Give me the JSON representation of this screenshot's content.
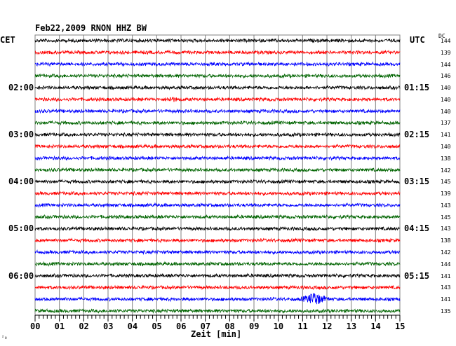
{
  "header": {
    "title": "Feb22,2009   RNON HHZ BW",
    "left_zone": "CET",
    "right_zone": "UTC",
    "dc_label": "DC"
  },
  "footer": {
    "xlabel": "Zeit [min]",
    "mark": "²₀"
  },
  "colors": {
    "trace_cycle": [
      "#000000",
      "#ff0000",
      "#0000ff",
      "#006400"
    ],
    "grid": "#808080"
  },
  "chart_data": {
    "type": "line",
    "title": "Feb22,2009   RNON HHZ BW",
    "xlabel": "Zeit [min]",
    "xlim": [
      0,
      15
    ],
    "x_ticks": [
      "00",
      "01",
      "02",
      "03",
      "04",
      "05",
      "06",
      "07",
      "08",
      "09",
      "10",
      "11",
      "12",
      "13",
      "14",
      "15"
    ],
    "trace_count": 24,
    "left_time_labels": [
      {
        "trace": 4,
        "text": "02:00"
      },
      {
        "trace": 8,
        "text": "03:00"
      },
      {
        "trace": 12,
        "text": "04:00"
      },
      {
        "trace": 16,
        "text": "05:00"
      },
      {
        "trace": 20,
        "text": "06:00"
      }
    ],
    "right_time_labels": [
      {
        "trace": 4,
        "text": "01:15"
      },
      {
        "trace": 8,
        "text": "02:15"
      },
      {
        "trace": 12,
        "text": "03:15"
      },
      {
        "trace": 16,
        "text": "04:15"
      },
      {
        "trace": 20,
        "text": "05:15"
      }
    ],
    "dc_values": [
      "144",
      "139",
      "144",
      "146",
      "140",
      "140",
      "140",
      "137",
      "141",
      "140",
      "138",
      "142",
      "145",
      "139",
      "143",
      "145",
      "143",
      "138",
      "142",
      "144",
      "141",
      "143",
      "141",
      "135"
    ],
    "events": [
      {
        "trace": 5,
        "minute": 5.6,
        "amplitude": "small"
      },
      {
        "trace": 22,
        "minute": 11.5,
        "amplitude": "large"
      }
    ]
  }
}
